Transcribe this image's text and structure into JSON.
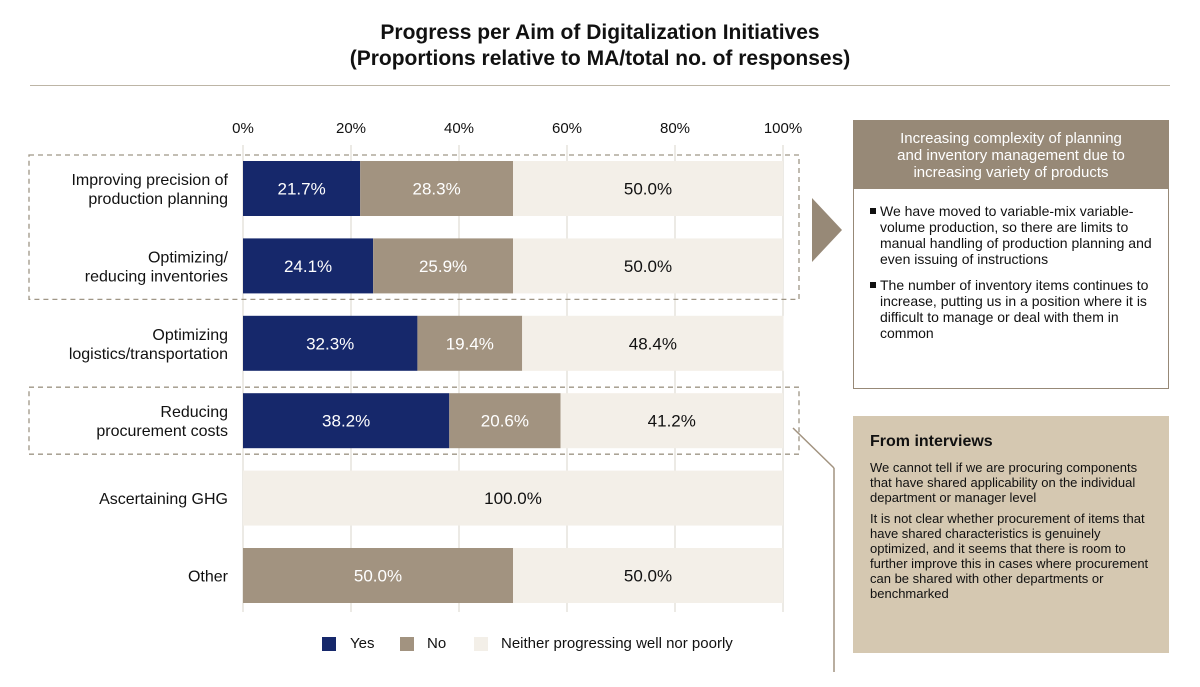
{
  "title": {
    "line1": "Progress per Aim of Digitalization Initiatives",
    "line2": "(Proportions relative to MA/total no. of responses)"
  },
  "colors": {
    "yes": "#16286b",
    "no": "#a29380",
    "neither": "#f3efe8",
    "box_header": "#978977",
    "interview_bg": "#d5c8b1",
    "dashed": "#9f9686"
  },
  "chart_data": {
    "type": "bar",
    "orientation": "horizontal",
    "stacked": true,
    "categories": [
      [
        "Improving precision of",
        "production planning"
      ],
      [
        "Optimizing/",
        "reducing inventories"
      ],
      [
        "Optimizing",
        "logistics/transportation"
      ],
      [
        "Reducing",
        "procurement costs"
      ],
      [
        "Ascertaining GHG"
      ],
      [
        "Other"
      ]
    ],
    "series": [
      {
        "name": "Yes",
        "values": [
          21.7,
          24.1,
          32.3,
          38.2,
          0,
          0
        ]
      },
      {
        "name": "No",
        "values": [
          28.3,
          25.9,
          19.4,
          20.6,
          0,
          50.0
        ]
      },
      {
        "name": "Neither progressing well nor poorly",
        "values": [
          50.0,
          50.0,
          48.4,
          41.2,
          100.0,
          50.0
        ]
      }
    ],
    "xlim": [
      0,
      100
    ],
    "x_ticks": [
      "0%",
      "20%",
      "40%",
      "60%",
      "80%",
      "100%"
    ],
    "grid": true,
    "axis_position": "top",
    "legend_position": "bottom",
    "highlighted_groups": [
      [
        0,
        1
      ],
      [
        3
      ]
    ]
  },
  "side_box": {
    "header": [
      "Increasing complexity of planning",
      "and inventory management due to",
      "increasing variety of products"
    ],
    "bullets": [
      "We have moved to variable-mix variable-volume production, so there are limits to manual handling of production planning and even issuing of instructions",
      "The number of inventory items continues to increase, putting us in a position where it is difficult to manage or deal with them in common"
    ]
  },
  "interviews": {
    "title": "From interviews",
    "paragraphs": [
      "We cannot tell if we are procuring components that have shared applicability on the individual department or manager level",
      "It is not clear whether procurement of items that have shared characteristics is genuinely optimized, and it seems that there is room to further improve this in cases where procurement can be shared with other departments or benchmarked"
    ]
  }
}
